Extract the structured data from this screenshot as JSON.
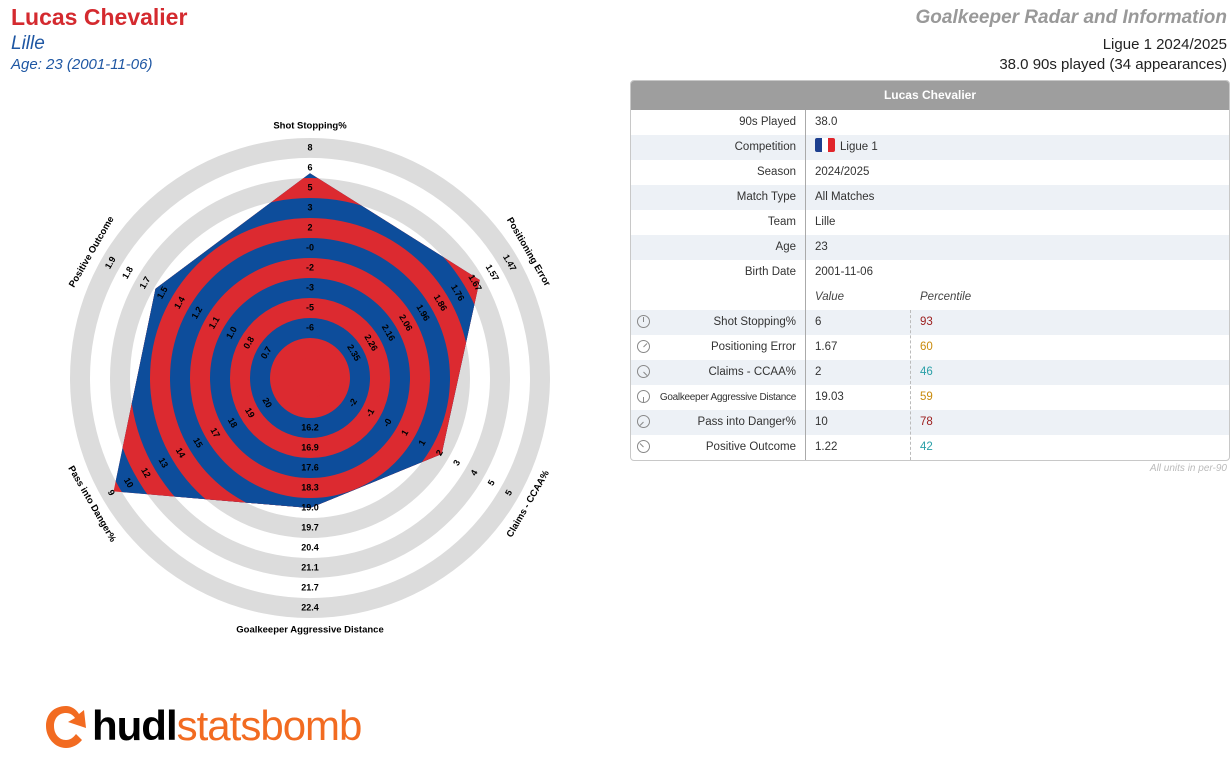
{
  "header": {
    "player_name": "Lucas Chevalier",
    "team": "Lille",
    "age_line": "Age: 23 (2001-11-06)",
    "report_title": "Goalkeeper Radar and Information",
    "competition_season": "Ligue 1 2024/2025",
    "played_line": "38.0 90s played (34 appearances)"
  },
  "colors": {
    "red": "#dc2a30",
    "blue": "#0d4d9b",
    "ring_grey": "#dcdcdc",
    "title_red": "#d42a2f",
    "team_blue": "#1f57a3"
  },
  "chart_data": {
    "type": "radar",
    "axes": [
      {
        "label": "Shot Stopping%",
        "ticks": [
          "8",
          "6",
          "5",
          "3",
          "2",
          "-0",
          "-2",
          "-3",
          "-5",
          "-6"
        ],
        "value": 6,
        "fraction": 0.84
      },
      {
        "label": "Positioning Error",
        "ticks": [
          "1.47",
          "1.57",
          "1.67",
          "1.76",
          "1.86",
          "1.96",
          "2.06",
          "2.16",
          "2.26",
          "2.35"
        ],
        "value": 1.67,
        "fraction": 0.8
      },
      {
        "label": "Claims - CCAA%",
        "ticks": [
          "5",
          "5",
          "4",
          "3",
          "2",
          "1",
          "1",
          "-0",
          "-1",
          "-2"
        ],
        "value": 2,
        "fraction": 0.6
      },
      {
        "label": "Goalkeeper Aggressive Distance",
        "ticks": [
          "22.4",
          "21.7",
          "21.1",
          "20.4",
          "19.7",
          "19.0",
          "18.3",
          "17.6",
          "16.9",
          "16.2"
        ],
        "value": 19.03,
        "fraction": 0.5
      },
      {
        "label": "Pass into Danger%",
        "ticks": [
          "9",
          "10",
          "12",
          "13",
          "14",
          "15",
          "17",
          "18",
          "19",
          "20"
        ],
        "value": 10,
        "fraction": 0.94
      },
      {
        "label": "Positive Outcome",
        "ticks": [
          "1.9",
          "1.8",
          "1.7",
          "1.5",
          "1.4",
          "1.2",
          "1.1",
          "1.0",
          "0.8",
          "0.7"
        ],
        "value": 1.22,
        "fraction": 0.72
      }
    ]
  },
  "table": {
    "title": "Lucas Chevalier",
    "info_rows": [
      {
        "label": "90s Played",
        "value": "38.0"
      },
      {
        "label": "Competition",
        "value": "Ligue 1",
        "flag": [
          "#1d3f8f",
          "#ffffff",
          "#e1252b"
        ]
      },
      {
        "label": "Season",
        "value": "2024/2025"
      },
      {
        "label": "Match Type",
        "value": "All Matches"
      },
      {
        "label": "Team",
        "value": "Lille"
      },
      {
        "label": "Age",
        "value": "23"
      },
      {
        "label": "Birth Date",
        "value": "2001-11-06"
      }
    ],
    "value_header": "Value",
    "percentile_header": "Percentile",
    "stat_rows": [
      {
        "label": "Shot Stopping%",
        "value": "6",
        "percentile": "93",
        "pct_color": "#9b1c1c",
        "icon": "gauge-icon"
      },
      {
        "label": "Positioning Error",
        "value": "1.67",
        "percentile": "60",
        "pct_color": "#c98a0b",
        "icon": "gauge-icon"
      },
      {
        "label": "Claims - CCAA%",
        "value": "2",
        "percentile": "46",
        "pct_color": "#2aa0a8",
        "icon": "gauge-icon"
      },
      {
        "label": "Goalkeeper Aggressive Distance",
        "value": "19.03",
        "percentile": "59",
        "pct_color": "#c98a0b",
        "icon": "gauge-icon"
      },
      {
        "label": "Pass into Danger%",
        "value": "10",
        "percentile": "78",
        "pct_color": "#9b1c1c",
        "icon": "gauge-icon"
      },
      {
        "label": "Positive Outcome",
        "value": "1.22",
        "percentile": "42",
        "pct_color": "#2aa0a8",
        "icon": "gauge-icon"
      }
    ],
    "footnote": "All units in per-90"
  },
  "logo": {
    "part1": "hudl",
    "part2": "statsbomb",
    "icon": "statsbomb-logo-icon"
  }
}
